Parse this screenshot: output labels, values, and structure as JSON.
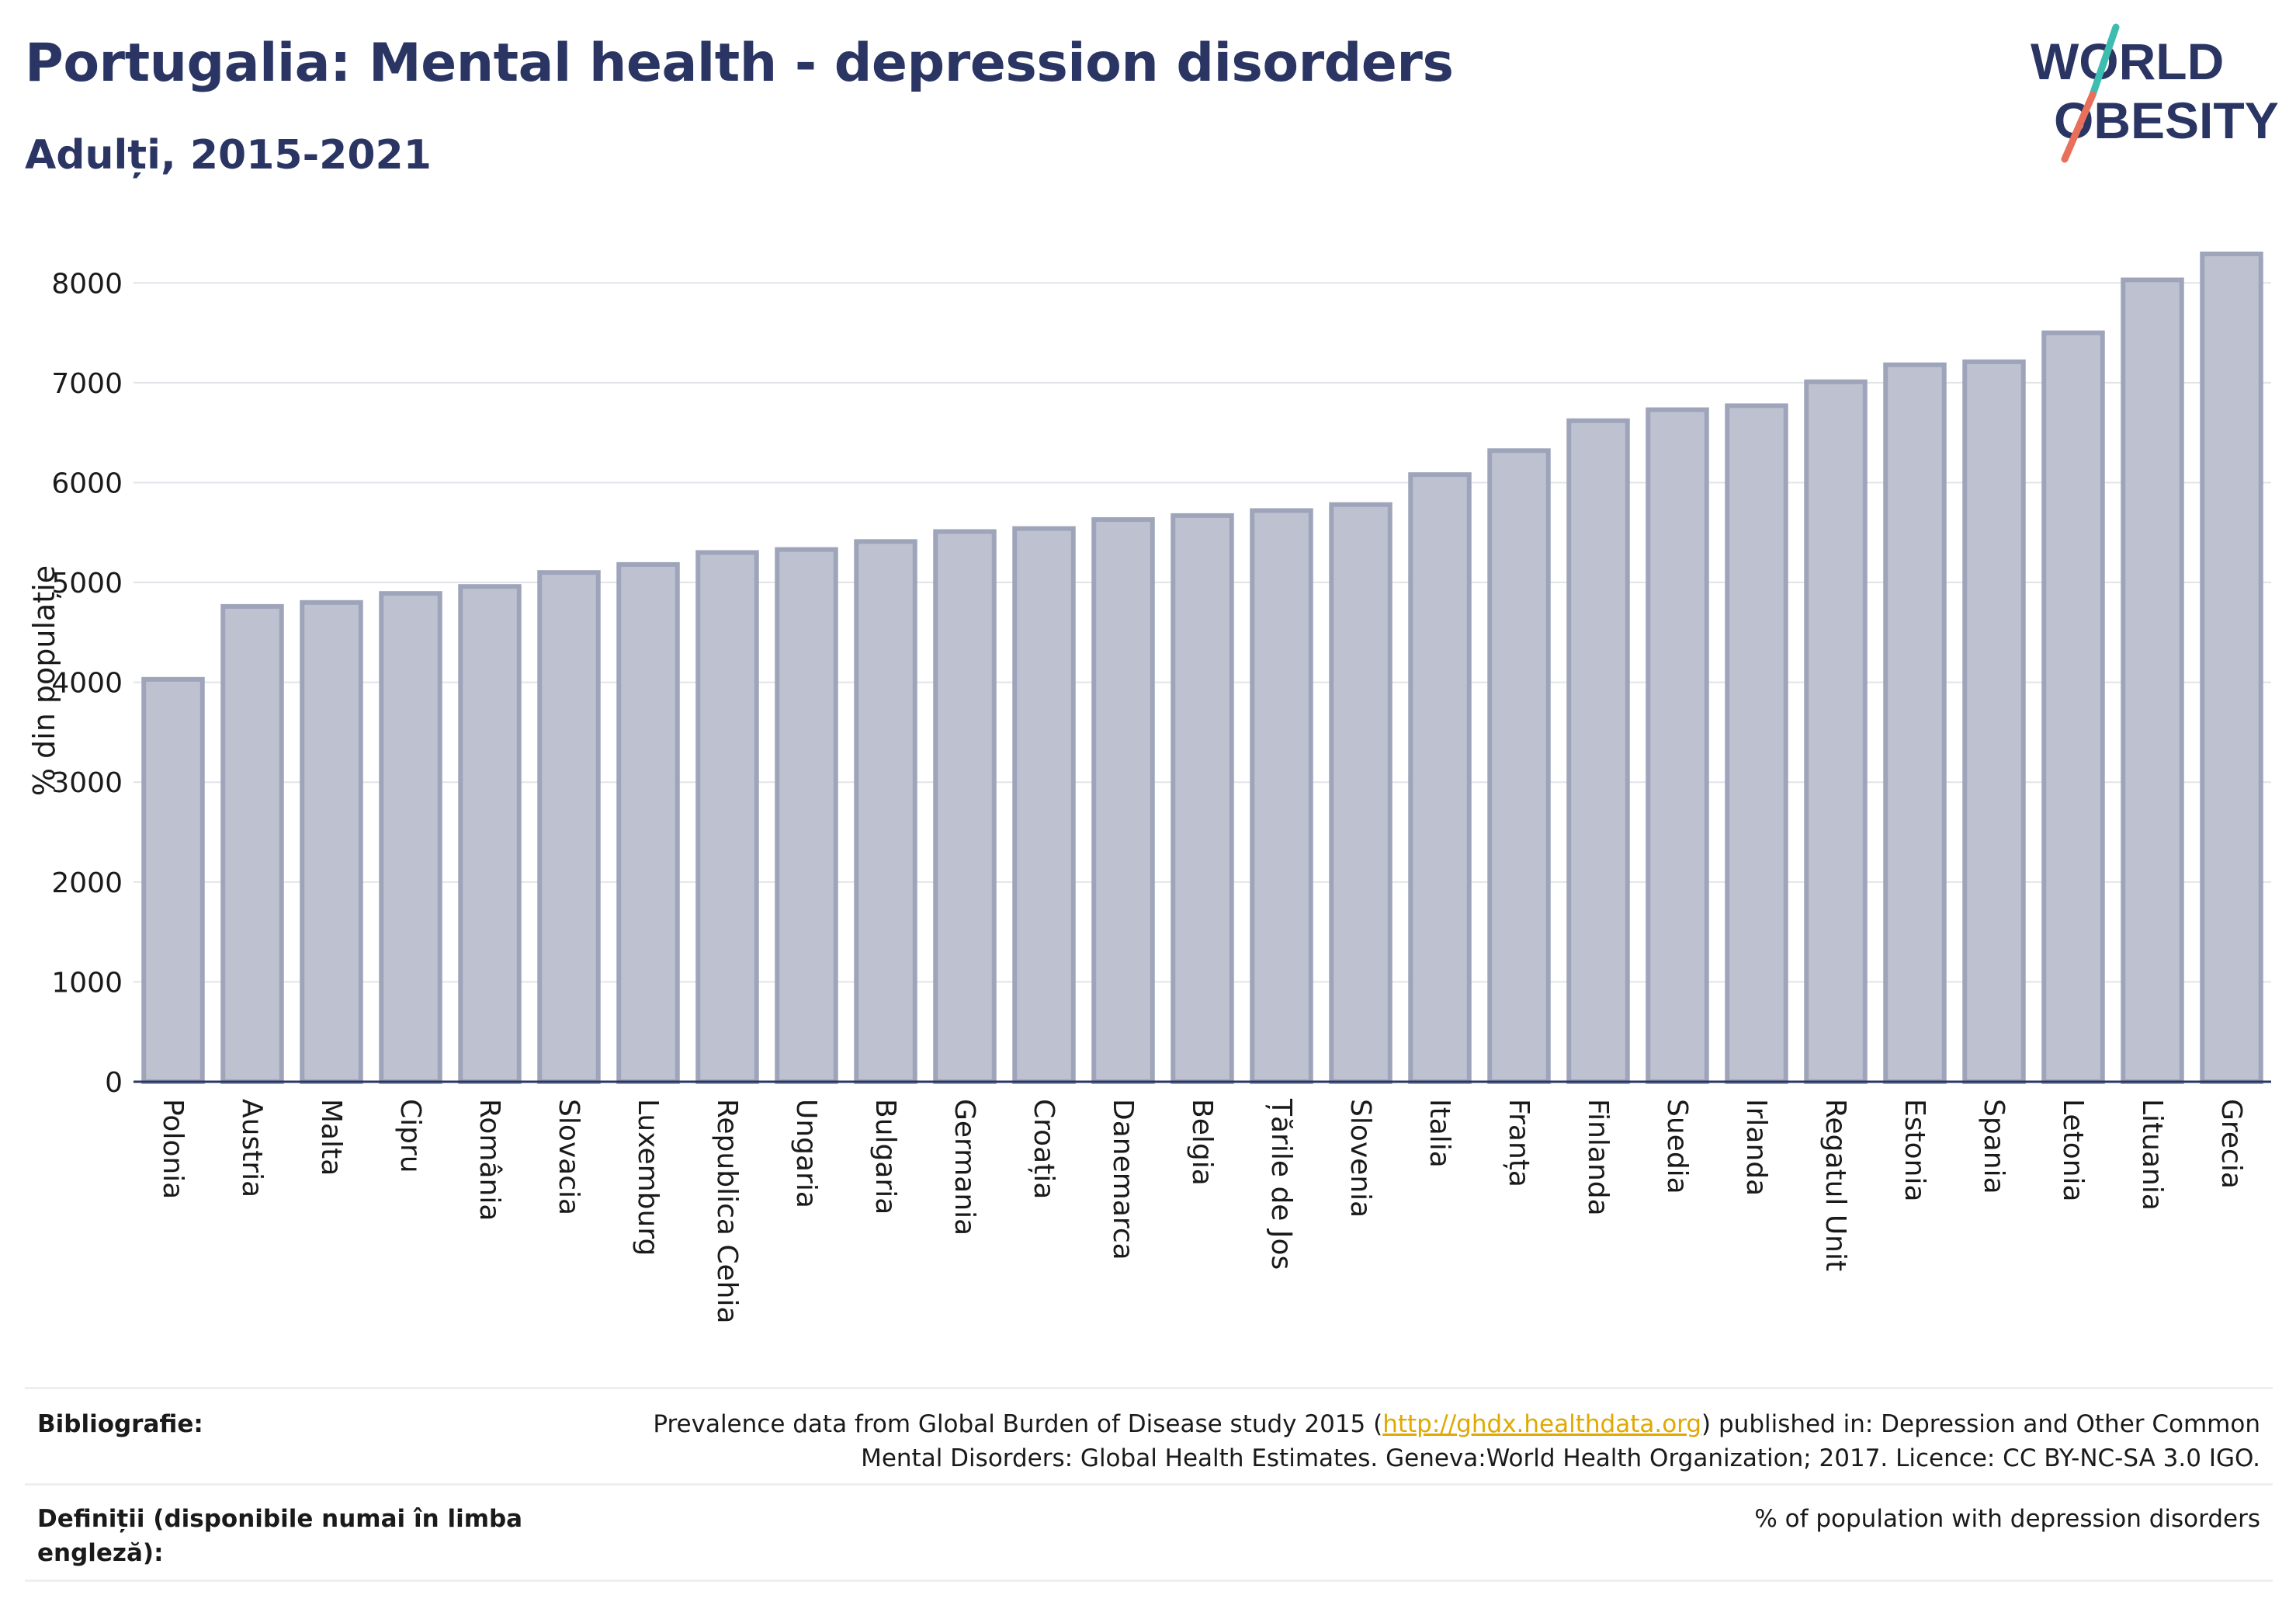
{
  "header": {
    "title": "Portugalia: Mental health - depression disorders",
    "subtitle": "Adulți, 2015-2021"
  },
  "logo": {
    "line1": "WORLD",
    "line2": "OBESITY",
    "accent_teal": "#3dbcb0",
    "accent_red": "#e8705a",
    "text_color": "#2a3563"
  },
  "chart_data": {
    "type": "bar",
    "categories": [
      "Polonia",
      "Austria",
      "Malta",
      "Cipru",
      "România",
      "Slovacia",
      "Luxemburg",
      "Republica Cehia",
      "Ungaria",
      "Bulgaria",
      "Germania",
      "Croația",
      "Danemarca",
      "Belgia",
      "Țările de Jos",
      "Slovenia",
      "Italia",
      "Franța",
      "Finlanda",
      "Suedia",
      "Irlanda",
      "Regatul Unit",
      "Estonia",
      "Spania",
      "Letonia",
      "Lituania",
      "Grecia"
    ],
    "values": [
      4030,
      4760,
      4800,
      4890,
      4960,
      5100,
      5180,
      5300,
      5330,
      5410,
      5510,
      5540,
      5630,
      5670,
      5720,
      5780,
      6080,
      6320,
      6620,
      6730,
      6770,
      7010,
      7180,
      7210,
      7500,
      8030,
      8290
    ],
    "ylabel": "% din populație",
    "xlabel": "",
    "ylim": [
      0,
      8500
    ],
    "yticks": [
      0,
      1000,
      2000,
      3000,
      4000,
      5000,
      6000,
      7000,
      8000
    ],
    "bar_fill": "#bec2d0",
    "bar_stroke": "#9ea4ba",
    "grid": true
  },
  "footer": {
    "bibliography_label": "Bibliografie:",
    "bibliography_pre": "Prevalence data from Global Burden of Disease study 2015 (",
    "bibliography_link": "http://ghdx.healthdata.org",
    "bibliography_post": ") published in: Depression and Other Common",
    "bibliography_line2": "Mental Disorders: Global Health Estimates. Geneva:World Health Organization; 2017. Licence: CC BY-NC-SA 3.0 IGO.",
    "definitions_label_line1": "Definiții (disponibile numai în limba",
    "definitions_label_line2": "engleză):",
    "definitions_text": "% of population with depression disorders"
  }
}
